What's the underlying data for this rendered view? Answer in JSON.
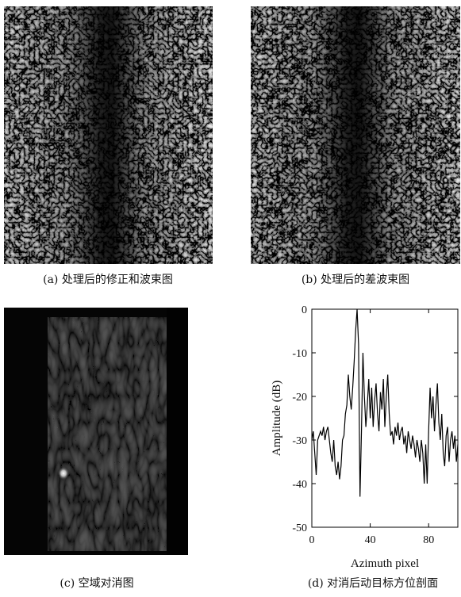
{
  "panels": [
    {
      "caption": "(a) 处理后的修正和波束图"
    },
    {
      "caption": "(b) 处理后的差波束图"
    },
    {
      "caption": "(c) 空域对消图"
    },
    {
      "caption": "(d) 对消后动目标方位剖面"
    }
  ],
  "chart_data": {
    "type": "line",
    "xlabel": "Azimuth pixel",
    "ylabel": "Amplitude (dB)",
    "color": "#000000",
    "xlim": [
      0,
      100
    ],
    "xticks": [
      0,
      40,
      80
    ],
    "ylim": [
      -50,
      0
    ],
    "yticks": [
      0,
      -10,
      -20,
      -30,
      -40,
      -50
    ],
    "x": [
      0,
      1,
      2,
      3,
      4,
      5,
      6,
      7,
      8,
      9,
      10,
      11,
      12,
      13,
      14,
      15,
      16,
      17,
      18,
      19,
      20,
      21,
      22,
      23,
      24,
      25,
      26,
      27,
      28,
      29,
      30,
      31,
      32,
      33,
      34,
      35,
      36,
      37,
      38,
      39,
      40,
      41,
      42,
      43,
      44,
      45,
      46,
      47,
      48,
      49,
      50,
      51,
      52,
      53,
      54,
      55,
      56,
      57,
      58,
      59,
      60,
      61,
      62,
      63,
      64,
      65,
      66,
      67,
      68,
      69,
      70,
      71,
      72,
      73,
      74,
      75,
      76,
      77,
      78,
      79,
      80,
      81,
      82,
      83,
      84,
      85,
      86,
      87,
      88,
      89,
      90,
      91,
      92,
      93,
      94,
      95,
      96,
      97,
      98,
      99,
      100
    ],
    "values": [
      -30,
      -28,
      -33,
      -38,
      -30,
      -29,
      -28,
      -29,
      -27,
      -30,
      -28,
      -27,
      -30,
      -33,
      -35,
      -30,
      -36,
      -38,
      -35,
      -39,
      -36,
      -30,
      -29,
      -24,
      -22,
      -15,
      -20,
      -23,
      -18,
      -12,
      -5,
      0,
      -8,
      -43,
      -28,
      -10,
      -20,
      -27,
      -22,
      -16,
      -25,
      -18,
      -27,
      -21,
      -17,
      -24,
      -28,
      -19,
      -23,
      -16,
      -27,
      -20,
      -15,
      -24,
      -29,
      -28,
      -31,
      -27,
      -29,
      -26,
      -30,
      -28,
      -27,
      -31,
      -29,
      -33,
      -28,
      -30,
      -32,
      -29,
      -31,
      -34,
      -30,
      -32,
      -35,
      -30,
      -33,
      -40,
      -31,
      -40,
      -28,
      -18,
      -25,
      -20,
      -28,
      -22,
      -17,
      -26,
      -30,
      -24,
      -33,
      -36,
      -29,
      -27,
      -35,
      -30,
      -28,
      -32,
      -29,
      -35,
      -31
    ]
  }
}
